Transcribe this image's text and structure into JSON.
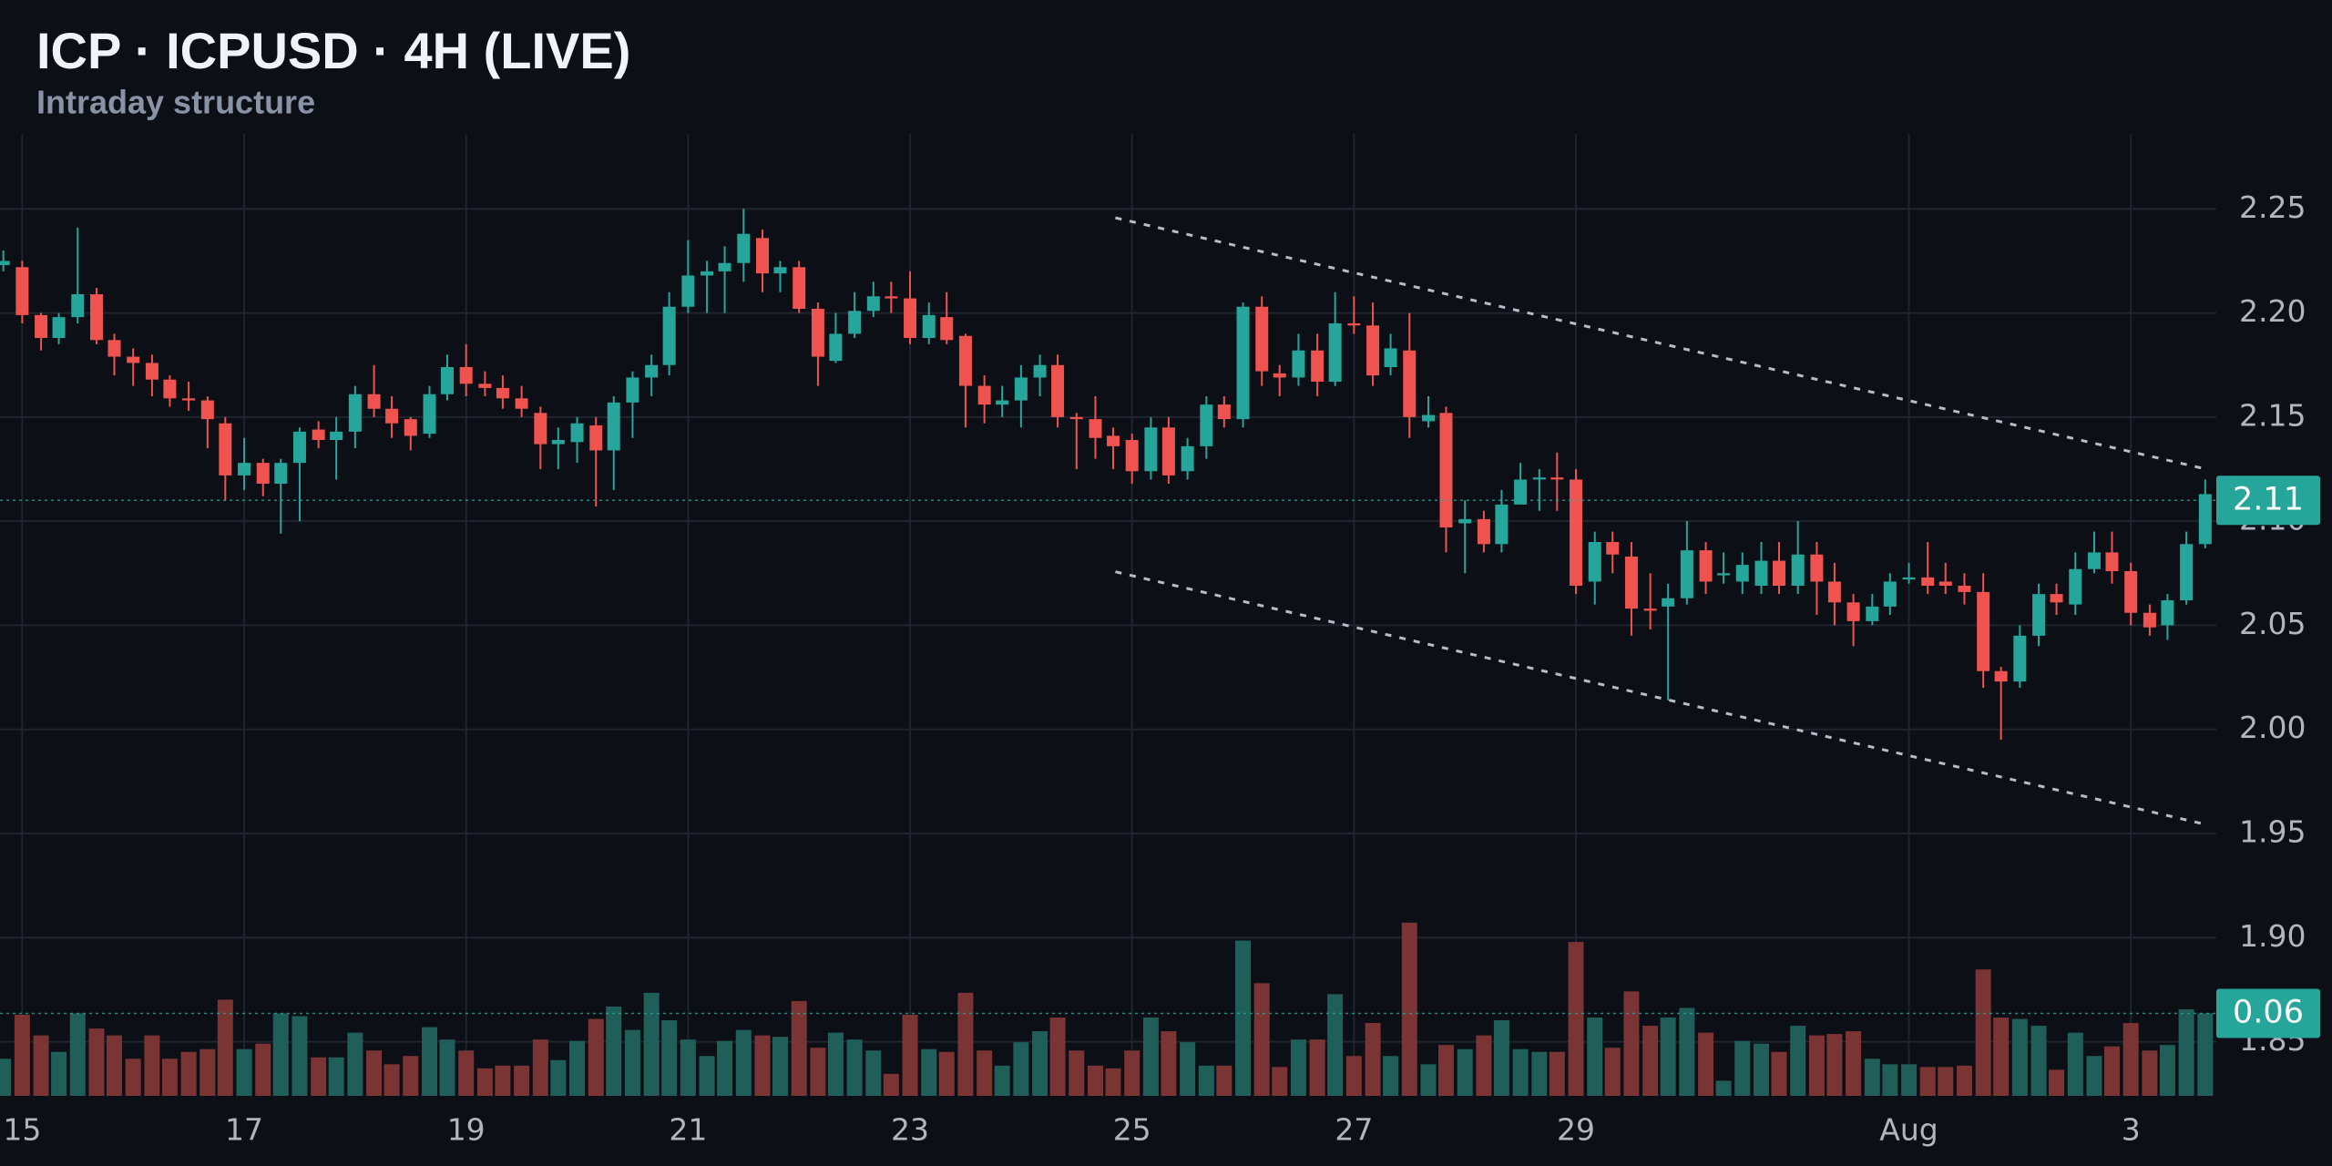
{
  "chart_data": {
    "type": "candlestick",
    "title": "ICP · ICPUSD · 4H (LIVE)",
    "subtitle": "Intraday structure",
    "x": [
      14.83,
      15,
      15.17,
      15.33,
      15.5,
      15.67,
      15.83,
      16,
      16.17,
      16.33,
      16.5,
      16.67,
      16.83,
      17,
      17.17,
      17.33,
      17.5,
      17.67,
      17.83,
      18,
      18.17,
      18.33,
      18.5,
      18.67,
      18.83,
      19,
      19.17,
      19.33,
      19.5,
      19.67,
      19.83,
      20,
      20.17,
      20.33,
      20.5,
      20.67,
      20.83,
      21,
      21.17,
      21.33,
      21.5,
      21.67,
      21.83,
      22,
      22.17,
      22.33,
      22.5,
      22.67,
      22.83,
      23,
      23.17,
      23.33,
      23.5,
      23.67,
      23.83,
      24,
      24.17,
      24.33,
      24.5,
      24.67,
      24.83,
      25,
      25.17,
      25.33,
      25.5,
      25.67,
      25.83,
      26,
      26.17,
      26.33,
      26.5,
      26.67,
      26.83,
      27,
      27.17,
      27.33,
      27.5,
      27.67,
      27.83,
      28,
      28.17,
      28.33,
      28.5,
      28.67,
      28.83,
      29,
      29.17,
      29.33,
      29.5,
      29.67,
      29.83,
      30,
      30.17,
      30.33,
      30.5,
      30.67,
      30.83,
      31,
      31.17,
      31.33,
      31.5,
      31.67,
      31.83,
      32,
      32.17,
      32.33,
      32.5,
      32.67,
      32.83,
      33,
      33.17,
      33.33,
      33.5,
      33.67,
      33.83,
      34,
      34.17,
      34.33,
      34.5,
      34.67
    ],
    "open": [
      2.223,
      2.222,
      2.199,
      2.188,
      2.198,
      2.209,
      2.187,
      2.179,
      2.176,
      2.168,
      2.159,
      2.158,
      2.147,
      2.122,
      2.128,
      2.118,
      2.128,
      2.144,
      2.139,
      2.143,
      2.161,
      2.154,
      2.149,
      2.142,
      2.161,
      2.174,
      2.166,
      2.164,
      2.159,
      2.152,
      2.137,
      2.138,
      2.146,
      2.134,
      2.157,
      2.169,
      2.175,
      2.203,
      2.218,
      2.22,
      2.224,
      2.236,
      2.219,
      2.222,
      2.202,
      2.177,
      2.19,
      2.201,
      2.208,
      2.207,
      2.188,
      2.198,
      2.189,
      2.165,
      2.156,
      2.158,
      2.169,
      2.175,
      2.15,
      2.149,
      2.141,
      2.139,
      2.124,
      2.145,
      2.124,
      2.136,
      2.156,
      2.149,
      2.203,
      2.171,
      2.169,
      2.182,
      2.167,
      2.195,
      2.194,
      2.174,
      2.182,
      2.148,
      2.152,
      2.099,
      2.101,
      2.089,
      2.108,
      2.12,
      2.121,
      2.12,
      2.071,
      2.09,
      2.083,
      2.058,
      2.059,
      2.063,
      2.086,
      2.074,
      2.071,
      2.069,
      2.081,
      2.069,
      2.084,
      2.071,
      2.061,
      2.052,
      2.059,
      2.072,
      2.073,
      2.071,
      2.069,
      2.066,
      2.028,
      2.023,
      2.045,
      2.065,
      2.06,
      2.077,
      2.085,
      2.076,
      2.056,
      2.05,
      2.062,
      2.089
    ],
    "high": [
      2.23,
      2.225,
      2.2,
      2.2,
      2.241,
      2.212,
      2.19,
      2.183,
      2.18,
      2.17,
      2.167,
      2.16,
      2.15,
      2.14,
      2.13,
      2.13,
      2.145,
      2.148,
      2.15,
      2.165,
      2.175,
      2.16,
      2.15,
      2.165,
      2.18,
      2.185,
      2.172,
      2.17,
      2.165,
      2.155,
      2.145,
      2.15,
      2.15,
      2.16,
      2.172,
      2.18,
      2.21,
      2.235,
      2.225,
      2.232,
      2.25,
      2.24,
      2.225,
      2.225,
      2.205,
      2.2,
      2.21,
      2.215,
      2.215,
      2.22,
      2.205,
      2.21,
      2.19,
      2.17,
      2.165,
      2.175,
      2.18,
      2.18,
      2.152,
      2.16,
      2.145,
      2.142,
      2.15,
      2.15,
      2.14,
      2.16,
      2.16,
      2.205,
      2.208,
      2.175,
      2.19,
      2.19,
      2.21,
      2.208,
      2.205,
      2.19,
      2.2,
      2.16,
      2.155,
      2.11,
      2.105,
      2.115,
      2.128,
      2.125,
      2.133,
      2.125,
      2.095,
      2.095,
      2.09,
      2.075,
      2.07,
      2.1,
      2.09,
      2.085,
      2.085,
      2.09,
      2.09,
      2.1,
      2.09,
      2.08,
      2.065,
      2.065,
      2.075,
      2.08,
      2.09,
      2.08,
      2.075,
      2.075,
      2.03,
      2.05,
      2.07,
      2.07,
      2.085,
      2.095,
      2.095,
      2.08,
      2.06,
      2.065,
      2.095,
      2.12
    ],
    "low": [
      2.22,
      2.195,
      2.182,
      2.185,
      2.195,
      2.185,
      2.17,
      2.165,
      2.16,
      2.155,
      2.153,
      2.135,
      2.11,
      2.115,
      2.112,
      2.094,
      2.1,
      2.135,
      2.12,
      2.135,
      2.15,
      2.14,
      2.134,
      2.14,
      2.158,
      2.16,
      2.16,
      2.154,
      2.15,
      2.125,
      2.125,
      2.128,
      2.107,
      2.115,
      2.14,
      2.16,
      2.17,
      2.2,
      2.2,
      2.2,
      2.215,
      2.21,
      2.21,
      2.2,
      2.165,
      2.176,
      2.188,
      2.198,
      2.2,
      2.185,
      2.185,
      2.185,
      2.145,
      2.147,
      2.15,
      2.145,
      2.16,
      2.145,
      2.125,
      2.13,
      2.125,
      2.118,
      2.12,
      2.118,
      2.12,
      2.13,
      2.145,
      2.145,
      2.165,
      2.16,
      2.165,
      2.16,
      2.165,
      2.19,
      2.165,
      2.17,
      2.14,
      2.145,
      2.085,
      2.075,
      2.085,
      2.085,
      2.11,
      2.105,
      2.105,
      2.065,
      2.06,
      2.075,
      2.045,
      2.048,
      2.014,
      2.06,
      2.065,
      2.07,
      2.065,
      2.065,
      2.065,
      2.065,
      2.055,
      2.05,
      2.04,
      2.05,
      2.055,
      2.07,
      2.065,
      2.065,
      2.06,
      2.02,
      1.995,
      2.02,
      2.04,
      2.055,
      2.055,
      2.075,
      2.07,
      2.05,
      2.045,
      2.043,
      2.06,
      2.087
    ],
    "close": [
      2.225,
      2.199,
      2.188,
      2.198,
      2.209,
      2.187,
      2.179,
      2.176,
      2.168,
      2.159,
      2.158,
      2.149,
      2.122,
      2.128,
      2.118,
      2.128,
      2.143,
      2.139,
      2.143,
      2.161,
      2.154,
      2.147,
      2.141,
      2.161,
      2.174,
      2.166,
      2.164,
      2.159,
      2.154,
      2.137,
      2.139,
      2.147,
      2.134,
      2.157,
      2.169,
      2.175,
      2.203,
      2.218,
      2.22,
      2.224,
      2.238,
      2.219,
      2.222,
      2.202,
      2.179,
      2.19,
      2.201,
      2.208,
      2.207,
      2.188,
      2.199,
      2.187,
      2.165,
      2.156,
      2.158,
      2.169,
      2.175,
      2.15,
      2.149,
      2.14,
      2.136,
      2.124,
      2.145,
      2.122,
      2.136,
      2.156,
      2.149,
      2.203,
      2.172,
      2.169,
      2.182,
      2.167,
      2.195,
      2.194,
      2.17,
      2.183,
      2.15,
      2.151,
      2.097,
      2.101,
      2.089,
      2.108,
      2.12,
      2.121,
      2.12,
      2.069,
      2.09,
      2.084,
      2.058,
      2.057,
      2.063,
      2.086,
      2.071,
      2.075,
      2.079,
      2.081,
      2.069,
      2.084,
      2.071,
      2.061,
      2.052,
      2.059,
      2.071,
      2.073,
      2.069,
      2.069,
      2.066,
      2.028,
      2.023,
      2.045,
      2.065,
      2.061,
      2.077,
      2.085,
      2.076,
      2.056,
      2.049,
      2.062,
      2.089,
      2.113
    ],
    "volume": [
      0.027,
      0.059,
      0.044,
      0.032,
      0.06,
      0.049,
      0.044,
      0.027,
      0.044,
      0.027,
      0.032,
      0.034,
      0.07,
      0.034,
      0.038,
      0.06,
      0.058,
      0.028,
      0.028,
      0.046,
      0.033,
      0.023,
      0.029,
      0.05,
      0.041,
      0.033,
      0.02,
      0.022,
      0.022,
      0.041,
      0.026,
      0.04,
      0.056,
      0.065,
      0.048,
      0.075,
      0.055,
      0.041,
      0.029,
      0.04,
      0.048,
      0.044,
      0.043,
      0.069,
      0.035,
      0.046,
      0.041,
      0.033,
      0.016,
      0.059,
      0.034,
      0.032,
      0.075,
      0.033,
      0.022,
      0.039,
      0.047,
      0.057,
      0.033,
      0.022,
      0.02,
      0.033,
      0.057,
      0.047,
      0.039,
      0.022,
      0.022,
      0.113,
      0.082,
      0.021,
      0.041,
      0.041,
      0.074,
      0.029,
      0.053,
      0.029,
      0.126,
      0.023,
      0.037,
      0.034,
      0.044,
      0.055,
      0.034,
      0.032,
      0.032,
      0.112,
      0.057,
      0.035,
      0.076,
      0.051,
      0.057,
      0.064,
      0.046,
      0.011,
      0.04,
      0.038,
      0.032,
      0.051,
      0.044,
      0.045,
      0.047,
      0.027,
      0.023,
      0.023,
      0.021,
      0.021,
      0.022,
      0.092,
      0.057,
      0.056,
      0.051,
      0.019,
      0.046,
      0.029,
      0.036,
      0.053,
      0.033,
      0.037,
      0.063,
      0.06
    ],
    "up_color": "#26a69a",
    "down_color": "#ef5350",
    "volume_up_color": "#1f5e59",
    "volume_down_color": "#7a3434",
    "xlim": [
      14.8,
      34.77
    ],
    "xticks": [
      15,
      17,
      19,
      21,
      23,
      25,
      27,
      29,
      {
        "value": 32,
        "label": "Aug"
      },
      {
        "value": 34,
        "label": "3"
      }
    ],
    "ylim": [
      1.824,
      2.286
    ],
    "yticks": [
      1.85,
      {
        "value": 1.9,
        "label": "1.90"
      },
      1.95,
      {
        "value": 2,
        "label": "2.00"
      },
      2.05,
      {
        "value": 2.1,
        "label": "2.10"
      },
      2.15,
      {
        "value": 2.2,
        "label": "2.20"
      },
      2.25
    ],
    "volume_lim": [
      0,
      0.7
    ],
    "grid": true,
    "last_price": 2.11,
    "last_volume": 0.06,
    "trendlines": [
      {
        "x": [
          24.85,
          34.68
        ],
        "y": [
          2.2457,
          2.125
        ]
      },
      {
        "x": [
          24.85,
          34.68
        ],
        "y": [
          2.0757,
          1.9543
        ]
      }
    ]
  }
}
